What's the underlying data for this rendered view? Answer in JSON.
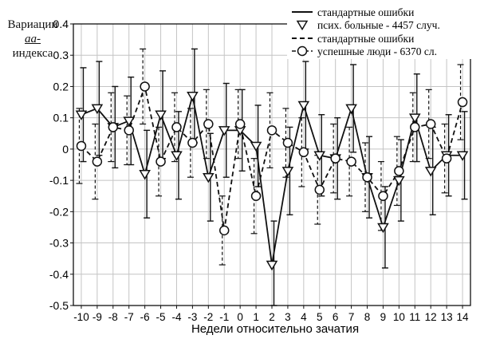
{
  "chart_data": {
    "type": "line",
    "ylabel_lines": [
      "Вариации",
      "аа-",
      "индекса"
    ],
    "xlabel": "Недели относительно зачатия",
    "xlim": [
      -10.5,
      14.5
    ],
    "ylim": [
      -0.5,
      0.4
    ],
    "yticks": [
      0.4,
      0.3,
      0.2,
      0.1,
      0,
      -0.1,
      -0.2,
      -0.3,
      -0.4,
      -0.5
    ],
    "ytick_labels": [
      "0.4",
      "0.3",
      "0.2",
      "0.1",
      "0",
      "-0.1",
      "-0.2",
      "-0.3",
      "-0.4",
      "-0.5"
    ],
    "x": [
      -10,
      -9,
      -8,
      -7,
      -6,
      -5,
      -4,
      -3,
      -2,
      -1,
      0,
      1,
      2,
      3,
      4,
      5,
      6,
      7,
      8,
      9,
      10,
      11,
      12,
      13,
      14
    ],
    "xtick_labels": [
      "-10",
      "-9",
      "-8",
      "-7",
      "-6",
      "-5",
      "-4",
      "-3",
      "-2",
      "-1",
      "0",
      "1",
      "2",
      "3",
      "4",
      "5",
      "6",
      "7",
      "8",
      "9",
      "10",
      "11",
      "12",
      "13",
      "14"
    ],
    "grid": true,
    "legend_position": "top-right",
    "legend": [
      {
        "label": "стандартные ошибки",
        "style": "solid-line"
      },
      {
        "label": "псих. больные - 4457 случ.",
        "style": "triangle-marker"
      },
      {
        "label": "стандартные ошибки",
        "style": "dashed-line"
      },
      {
        "label": "успешные люди - 6370 сл.",
        "style": "circle-marker"
      }
    ],
    "series": [
      {
        "name": "псих. больные - 4457 случ.",
        "marker": "triangle-down",
        "line": "solid",
        "values": [
          0.11,
          0.13,
          0.07,
          0.09,
          -0.08,
          0.11,
          -0.02,
          0.17,
          -0.09,
          0.06,
          0.06,
          0.01,
          -0.37,
          -0.07,
          0.14,
          -0.02,
          -0.03,
          0.13,
          -0.09,
          -0.25,
          -0.1,
          0.1,
          -0.07,
          -0.02,
          -0.02
        ],
        "err": [
          0.15,
          0.15,
          0.13,
          0.14,
          0.14,
          0.14,
          0.14,
          0.15,
          0.14,
          0.15,
          0.13,
          0.13,
          0.14,
          0.14,
          0.14,
          0.13,
          0.13,
          0.14,
          0.13,
          0.13,
          0.13,
          0.14,
          0.14,
          0.13,
          0.14
        ]
      },
      {
        "name": "успешные люди - 6370 сл.",
        "marker": "circle",
        "line": "dashed",
        "values": [
          0.01,
          -0.04,
          0.07,
          0.06,
          0.2,
          -0.04,
          0.07,
          0.02,
          0.08,
          -0.26,
          0.08,
          -0.15,
          0.06,
          0.02,
          -0.01,
          -0.13,
          -0.03,
          -0.04,
          -0.09,
          -0.15,
          -0.07,
          0.07,
          0.08,
          -0.03,
          0.15
        ],
        "err": [
          0.12,
          0.12,
          0.11,
          0.11,
          0.12,
          0.11,
          0.11,
          0.11,
          0.11,
          0.11,
          0.11,
          0.12,
          0.12,
          0.11,
          0.11,
          0.11,
          0.11,
          0.11,
          0.11,
          0.11,
          0.11,
          0.11,
          0.11,
          0.11,
          0.12
        ]
      }
    ]
  }
}
